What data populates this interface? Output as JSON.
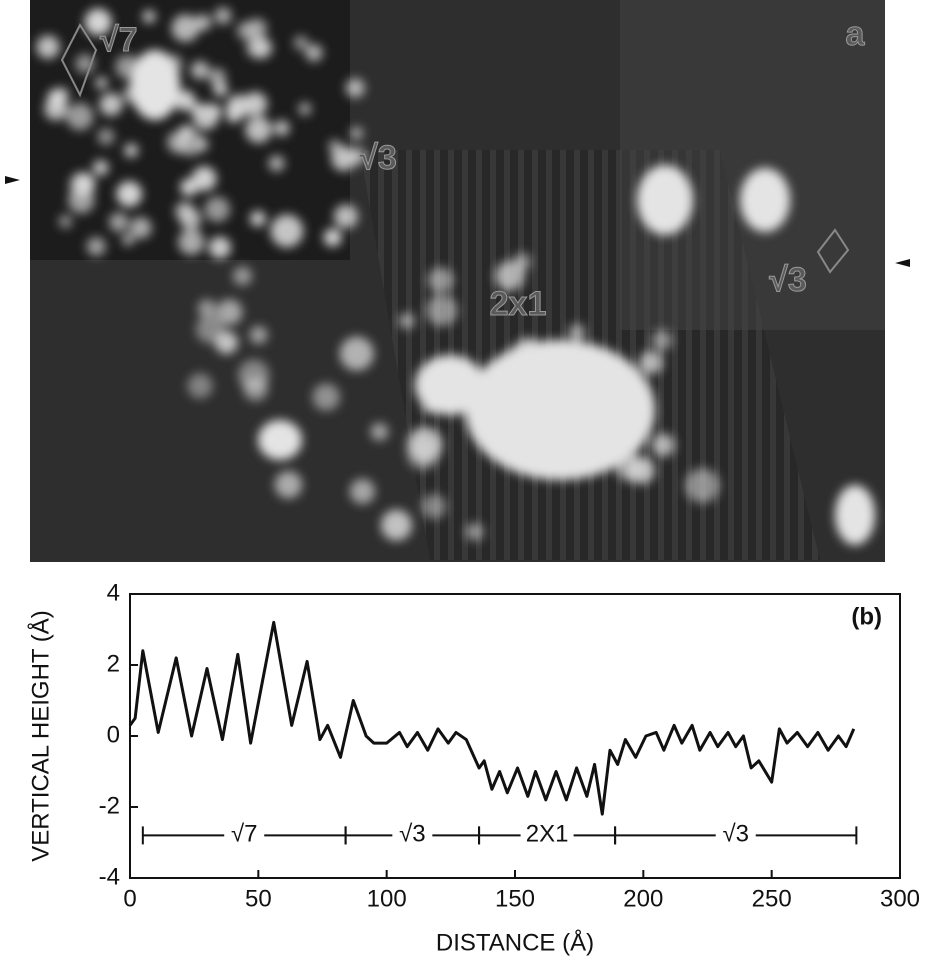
{
  "image_panel": {
    "labels": [
      "a",
      "√7",
      "√3",
      "2x1",
      "√3"
    ]
  },
  "chart_data": {
    "type": "line",
    "panel_label": "(b)",
    "xlabel": "DISTANCE (Å)",
    "ylabel": "VERTICAL HEIGHT (Å)",
    "xlim": [
      0,
      300
    ],
    "xticks": [
      0,
      50,
      100,
      150,
      200,
      250,
      300
    ],
    "ylim": [
      -4,
      4
    ],
    "yticks": [
      -4,
      -2,
      0,
      2,
      4
    ],
    "x": [
      0,
      2,
      5,
      11,
      18,
      24,
      30,
      36,
      42,
      47,
      56,
      63,
      69,
      74,
      77,
      82,
      87,
      92,
      95,
      100,
      105,
      108,
      112,
      116,
      120,
      124,
      127,
      131,
      136,
      138,
      141,
      144,
      147,
      151,
      155,
      158,
      162,
      166,
      170,
      174,
      178,
      181,
      184,
      187,
      190,
      193,
      197,
      201,
      205,
      208,
      212,
      215,
      219,
      222,
      226,
      229,
      233,
      236,
      239,
      242,
      245,
      250,
      253,
      256,
      260,
      264,
      268,
      272,
      276,
      279,
      282
    ],
    "series": [
      {
        "color": "#111111",
        "values": [
          0.3,
          0.5,
          2.4,
          0.1,
          2.2,
          0.0,
          1.9,
          -0.1,
          2.3,
          -0.2,
          3.2,
          0.3,
          2.1,
          -0.1,
          0.3,
          -0.6,
          1.0,
          0.0,
          -0.2,
          -0.2,
          0.1,
          -0.3,
          0.1,
          -0.4,
          0.2,
          -0.2,
          0.1,
          -0.1,
          -0.9,
          -0.7,
          -1.5,
          -1.0,
          -1.6,
          -0.9,
          -1.7,
          -1.0,
          -1.8,
          -1.0,
          -1.8,
          -0.9,
          -1.7,
          -0.8,
          -2.2,
          -0.4,
          -0.8,
          -0.1,
          -0.6,
          0.0,
          0.1,
          -0.4,
          0.3,
          -0.2,
          0.3,
          -0.4,
          0.1,
          -0.3,
          0.1,
          -0.3,
          0.0,
          -0.9,
          -0.7,
          -1.3,
          0.2,
          -0.2,
          0.1,
          -0.3,
          0.1,
          -0.4,
          0.0,
          -0.3,
          0.2
        ]
      }
    ],
    "regions": [
      {
        "label": "√7",
        "x": [
          5,
          84
        ]
      },
      {
        "label": "√3",
        "x": [
          84,
          136
        ]
      },
      {
        "label": "2X1",
        "x": [
          136,
          189
        ]
      },
      {
        "label": "√3",
        "x": [
          189,
          283
        ]
      }
    ]
  }
}
